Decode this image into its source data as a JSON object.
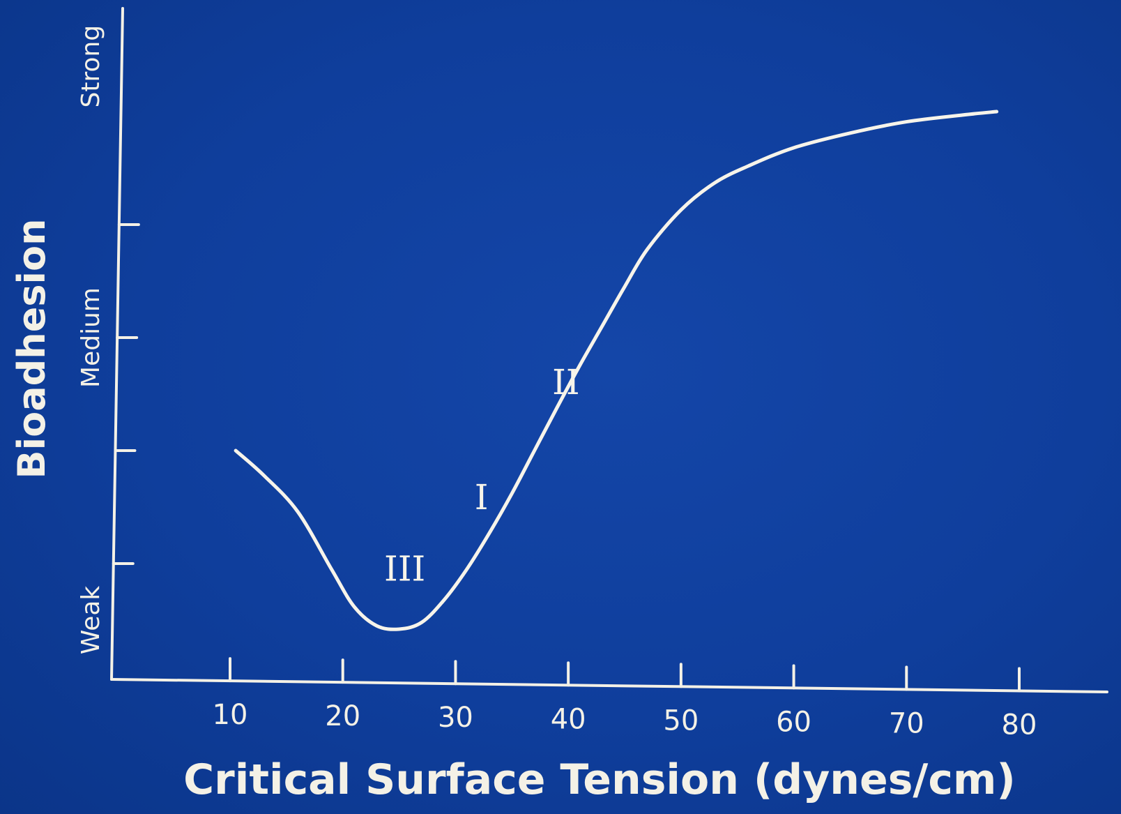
{
  "chart_data": {
    "type": "line",
    "title": "",
    "xlabel": "Critical Surface Tension (dynes/cm)",
    "ylabel": "Bioadhesion",
    "xlim": [
      0,
      85
    ],
    "x_ticks": [
      10,
      20,
      30,
      40,
      50,
      60,
      70,
      80
    ],
    "x_tick_labels": [
      "10",
      "20",
      "30",
      "40",
      "50",
      "60",
      "70",
      "80"
    ],
    "ylim": [
      0,
      5
    ],
    "y_ticks": [
      1,
      2,
      3,
      4
    ],
    "y_level_labels": [
      {
        "label": "Weak",
        "y": 0.5
      },
      {
        "label": "Medium",
        "y": 3.0
      },
      {
        "label": "Strong",
        "y": 5.4
      }
    ],
    "grid": false,
    "series": [
      {
        "x": [
          10.5,
          13,
          16,
          19,
          21,
          23,
          25,
          27,
          29,
          31,
          33,
          35,
          37,
          39,
          41,
          43,
          45,
          47,
          50,
          53,
          56,
          60,
          65,
          70,
          75,
          78
        ],
        "y": [
          2.0,
          1.78,
          1.46,
          0.95,
          0.62,
          0.45,
          0.42,
          0.48,
          0.68,
          0.95,
          1.27,
          1.62,
          2.0,
          2.38,
          2.75,
          3.1,
          3.45,
          3.78,
          4.13,
          4.37,
          4.52,
          4.68,
          4.81,
          4.91,
          4.97,
          5.0
        ]
      }
    ],
    "annotations": [
      {
        "text": "III",
        "x": 25.5,
        "y": 0.85
      },
      {
        "text": "I",
        "x": 32.3,
        "y": 1.48
      },
      {
        "text": "II",
        "x": 39.8,
        "y": 2.5
      }
    ]
  }
}
